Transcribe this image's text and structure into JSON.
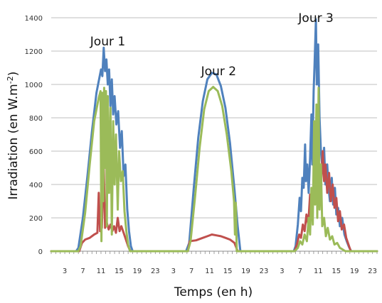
{
  "chart_data": {
    "type": "line",
    "title": "",
    "xlabel": "Temps (en h)",
    "ylabel": "Irradiation (en W.m-2)",
    "ylabel_parts": {
      "base": "Irradiation (en W.m",
      "sup": "-2",
      "close": ")"
    },
    "ylim": [
      0,
      1400
    ],
    "yticks": [
      0,
      200,
      400,
      600,
      800,
      1000,
      1200,
      1400
    ],
    "x_hours": [
      0,
      72
    ],
    "xtick_labels": [
      "3",
      "7",
      "11",
      "15",
      "19",
      "23",
      "3",
      "7",
      "11",
      "15",
      "19",
      "23",
      "3",
      "7",
      "11",
      "15",
      "19",
      "23"
    ],
    "xtick_hours": [
      3,
      7,
      11,
      15,
      19,
      23,
      27,
      31,
      35,
      39,
      43,
      47,
      51,
      55,
      59,
      63,
      67,
      71
    ],
    "grid": true,
    "legend": "none",
    "annotations": [
      {
        "text": "Jour 1",
        "x": 12.5,
        "y": 1260
      },
      {
        "text": "Jour 2",
        "x": 37.0,
        "y": 1080
      },
      {
        "text": "Jour 3",
        "x": 58.5,
        "y": 1400
      }
    ],
    "series": [
      {
        "color": "#4f81bd",
        "points": [
          [
            0,
            0
          ],
          [
            5.5,
            0
          ],
          [
            6,
            20
          ],
          [
            7,
            200
          ],
          [
            8,
            450
          ],
          [
            9,
            720
          ],
          [
            10,
            950
          ],
          [
            10.5,
            1020
          ],
          [
            11,
            1090
          ],
          [
            11.3,
            1050
          ],
          [
            11.6,
            1220
          ],
          [
            11.9,
            1080
          ],
          [
            12.2,
            1150
          ],
          [
            12.5,
            1000
          ],
          [
            12.8,
            1090
          ],
          [
            13.1,
            870
          ],
          [
            13.4,
            1030
          ],
          [
            13.7,
            820
          ],
          [
            14,
            930
          ],
          [
            14.4,
            760
          ],
          [
            14.8,
            840
          ],
          [
            15.2,
            620
          ],
          [
            15.6,
            720
          ],
          [
            16,
            450
          ],
          [
            16.4,
            520
          ],
          [
            16.8,
            250
          ],
          [
            17.2,
            120
          ],
          [
            17.6,
            30
          ],
          [
            18,
            0
          ],
          [
            29.8,
            0
          ],
          [
            30.5,
            50
          ],
          [
            31.5,
            380
          ],
          [
            32.5,
            680
          ],
          [
            33.5,
            900
          ],
          [
            34.5,
            1030
          ],
          [
            35.5,
            1070
          ],
          [
            36.5,
            1060
          ],
          [
            37.5,
            990
          ],
          [
            38.5,
            860
          ],
          [
            39.5,
            650
          ],
          [
            40.5,
            370
          ],
          [
            41.2,
            150
          ],
          [
            41.8,
            0
          ],
          [
            53.6,
            0
          ],
          [
            54,
            30
          ],
          [
            54.5,
            160
          ],
          [
            54.9,
            320
          ],
          [
            55.2,
            240
          ],
          [
            55.5,
            440
          ],
          [
            55.8,
            380
          ],
          [
            56.1,
            640
          ],
          [
            56.3,
            420
          ],
          [
            56.6,
            520
          ],
          [
            56.9,
            350
          ],
          [
            57.2,
            560
          ],
          [
            57.5,
            820
          ],
          [
            57.7,
            520
          ],
          [
            58,
            960
          ],
          [
            58.2,
            1120
          ],
          [
            58.5,
            1390
          ],
          [
            58.7,
            1000
          ],
          [
            59,
            1240
          ],
          [
            59.3,
            800
          ],
          [
            59.6,
            600
          ],
          [
            60,
            480
          ],
          [
            60.3,
            620
          ],
          [
            60.6,
            400
          ],
          [
            61,
            520
          ],
          [
            61.3,
            380
          ],
          [
            61.6,
            300
          ],
          [
            62,
            440
          ],
          [
            62.3,
            280
          ],
          [
            62.7,
            380
          ],
          [
            63,
            220
          ],
          [
            63.4,
            260
          ],
          [
            63.8,
            150
          ],
          [
            64.3,
            200
          ],
          [
            64.8,
            100
          ],
          [
            65.3,
            60
          ],
          [
            65.8,
            25
          ],
          [
            66.3,
            0
          ],
          [
            72,
            0
          ]
        ]
      },
      {
        "color": "#c0504d",
        "points": [
          [
            0,
            0
          ],
          [
            6.2,
            0
          ],
          [
            6.8,
            50
          ],
          [
            7.5,
            70
          ],
          [
            8.5,
            80
          ],
          [
            9.5,
            100
          ],
          [
            10.2,
            110
          ],
          [
            10.5,
            350
          ],
          [
            10.8,
            120
          ],
          [
            11.2,
            140
          ],
          [
            11.6,
            520
          ],
          [
            11.9,
            140
          ],
          [
            12.3,
            170
          ],
          [
            12.7,
            130
          ],
          [
            13.1,
            160
          ],
          [
            13.5,
            120
          ],
          [
            13.9,
            150
          ],
          [
            14.3,
            110
          ],
          [
            14.7,
            200
          ],
          [
            15.1,
            120
          ],
          [
            15.5,
            150
          ],
          [
            16,
            110
          ],
          [
            16.5,
            70
          ],
          [
            17,
            30
          ],
          [
            17.5,
            0
          ],
          [
            30.2,
            0
          ],
          [
            30.6,
            60
          ],
          [
            32,
            65
          ],
          [
            33.5,
            80
          ],
          [
            34.5,
            90
          ],
          [
            35.5,
            100
          ],
          [
            36.5,
            95
          ],
          [
            37.5,
            90
          ],
          [
            38.5,
            80
          ],
          [
            39.5,
            70
          ],
          [
            40.5,
            50
          ],
          [
            41.2,
            0
          ],
          [
            53.8,
            0
          ],
          [
            54.3,
            40
          ],
          [
            54.8,
            100
          ],
          [
            55.2,
            80
          ],
          [
            55.6,
            160
          ],
          [
            56,
            120
          ],
          [
            56.4,
            220
          ],
          [
            56.8,
            160
          ],
          [
            57.2,
            340
          ],
          [
            57.6,
            240
          ],
          [
            58,
            300
          ],
          [
            58.4,
            440
          ],
          [
            58.8,
            300
          ],
          [
            59.2,
            520
          ],
          [
            59.6,
            380
          ],
          [
            60,
            600
          ],
          [
            60.3,
            420
          ],
          [
            60.6,
            520
          ],
          [
            61,
            350
          ],
          [
            61.4,
            470
          ],
          [
            61.8,
            300
          ],
          [
            62.2,
            400
          ],
          [
            62.6,
            260
          ],
          [
            63,
            320
          ],
          [
            63.4,
            180
          ],
          [
            63.8,
            240
          ],
          [
            64.2,
            130
          ],
          [
            64.7,
            160
          ],
          [
            65.2,
            80
          ],
          [
            65.7,
            40
          ],
          [
            66.2,
            0
          ],
          [
            72,
            0
          ]
        ]
      },
      {
        "color": "#9bbb59",
        "points": [
          [
            0,
            0
          ],
          [
            6,
            0
          ],
          [
            6.5,
            30
          ],
          [
            7.5,
            230
          ],
          [
            8.5,
            520
          ],
          [
            9.5,
            780
          ],
          [
            10.5,
            920
          ],
          [
            10.9,
            960
          ],
          [
            11.1,
            60
          ],
          [
            11.3,
            950
          ],
          [
            11.5,
            300
          ],
          [
            11.7,
            980
          ],
          [
            11.9,
            500
          ],
          [
            12.1,
            960
          ],
          [
            12.3,
            150
          ],
          [
            12.5,
            930
          ],
          [
            12.8,
            350
          ],
          [
            13.1,
            860
          ],
          [
            13.4,
            100
          ],
          [
            13.7,
            780
          ],
          [
            14,
            400
          ],
          [
            14.3,
            700
          ],
          [
            14.7,
            250
          ],
          [
            15,
            600
          ],
          [
            15.4,
            420
          ],
          [
            15.8,
            480
          ],
          [
            16.2,
            240
          ],
          [
            16.6,
            120
          ],
          [
            17,
            40
          ],
          [
            17.4,
            0
          ],
          [
            30.2,
            0
          ],
          [
            30.8,
            60
          ],
          [
            31.8,
            330
          ],
          [
            32.8,
            620
          ],
          [
            33.8,
            850
          ],
          [
            34.8,
            960
          ],
          [
            35.8,
            985
          ],
          [
            36.8,
            960
          ],
          [
            37.8,
            870
          ],
          [
            38.8,
            700
          ],
          [
            39.8,
            480
          ],
          [
            40.4,
            300
          ],
          [
            40.6,
            100
          ],
          [
            40.8,
            290
          ],
          [
            41,
            0
          ],
          [
            53.8,
            0
          ],
          [
            54.5,
            20
          ],
          [
            55,
            60
          ],
          [
            55.5,
            40
          ],
          [
            56,
            100
          ],
          [
            56.5,
            60
          ],
          [
            56.9,
            200
          ],
          [
            57.2,
            100
          ],
          [
            57.5,
            380
          ],
          [
            57.8,
            160
          ],
          [
            58.1,
            780
          ],
          [
            58.3,
            280
          ],
          [
            58.6,
            880
          ],
          [
            58.8,
            200
          ],
          [
            59.1,
            980
          ],
          [
            59.3,
            250
          ],
          [
            59.6,
            520
          ],
          [
            59.9,
            150
          ],
          [
            60.3,
            200
          ],
          [
            60.7,
            90
          ],
          [
            61.1,
            140
          ],
          [
            61.6,
            70
          ],
          [
            62.1,
            90
          ],
          [
            62.6,
            40
          ],
          [
            63.2,
            50
          ],
          [
            63.8,
            20
          ],
          [
            64.4,
            10
          ],
          [
            65,
            0
          ],
          [
            72,
            0
          ]
        ]
      }
    ]
  }
}
